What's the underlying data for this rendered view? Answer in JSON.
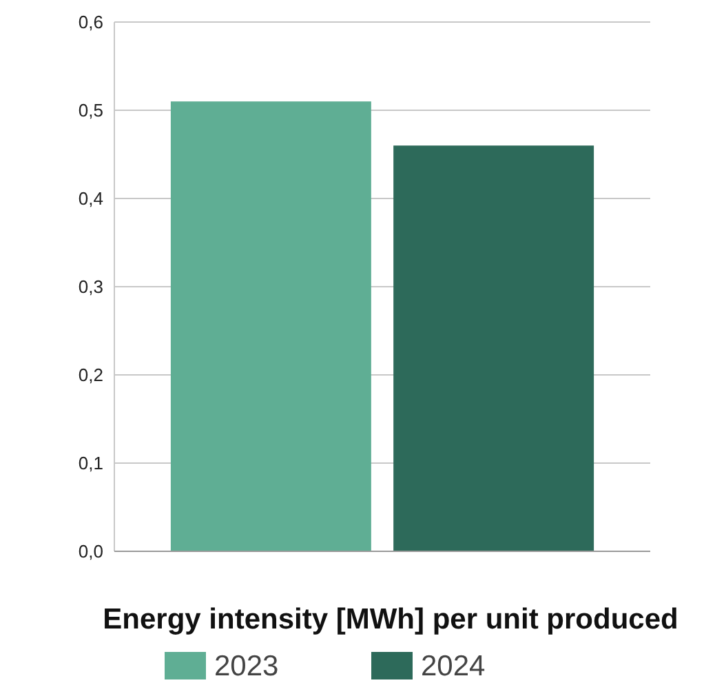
{
  "chart_data": {
    "type": "bar",
    "xlabel": "Energy intensity [MWh] per unit produced",
    "categories": [
      null
    ],
    "series": [
      {
        "name": "2023",
        "color": "#5fae94",
        "values": [
          0.51
        ]
      },
      {
        "name": "2024",
        "color": "#2d6a5a",
        "values": [
          0.46
        ]
      }
    ],
    "ylim": [
      0,
      0.6
    ],
    "yticks": [
      {
        "value": 0,
        "label": "0,0"
      },
      {
        "value": 0.1,
        "label": "0,1"
      },
      {
        "value": 0.2,
        "label": "0,2"
      },
      {
        "value": 0.3,
        "label": "0,3"
      },
      {
        "value": 0.4,
        "label": "0,4"
      },
      {
        "value": 0.5,
        "label": "0,5"
      },
      {
        "value": 0.6,
        "label": "0,6"
      }
    ],
    "grid": "y",
    "legend": "bottom"
  }
}
